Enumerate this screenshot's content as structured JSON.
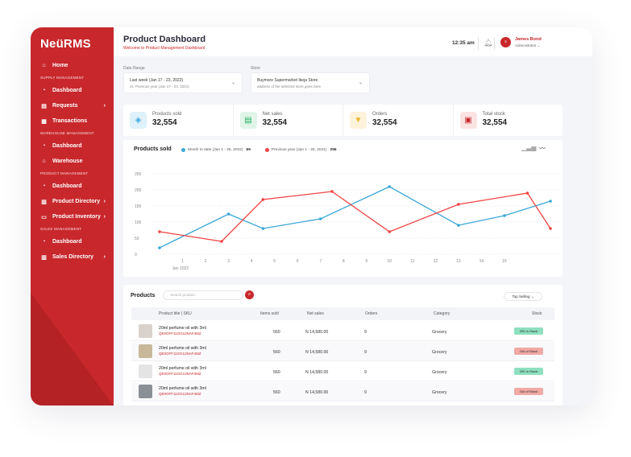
{
  "app": {
    "logo": "NeüRMS"
  },
  "sidebar": {
    "items": [
      {
        "type": "item",
        "label": "Home",
        "icon": "home-icon"
      },
      {
        "type": "section",
        "label": "SUPPLY MANAGEMENT"
      },
      {
        "type": "item",
        "label": "Dashboard",
        "icon": "dashboard-icon"
      },
      {
        "type": "item",
        "label": "Requests",
        "icon": "requests-icon",
        "chevron": true
      },
      {
        "type": "item",
        "label": "Transactions",
        "icon": "transactions-icon"
      },
      {
        "type": "section",
        "label": "WAREHOUSE MANAGEMENT"
      },
      {
        "type": "item",
        "label": "Dashboard",
        "icon": "dashboard-icon"
      },
      {
        "type": "item",
        "label": "Warehouse",
        "icon": "warehouse-icon"
      },
      {
        "type": "section",
        "label": "PRODUCT MANAGEMENT"
      },
      {
        "type": "item",
        "label": "Dashboard",
        "icon": "dashboard-icon",
        "active": true
      },
      {
        "type": "item",
        "label": "Product Directory",
        "icon": "directory-icon",
        "chevron": true
      },
      {
        "type": "item",
        "label": "Product Inventory",
        "icon": "inventory-icon",
        "chevron": true
      },
      {
        "type": "section",
        "label": "SALES MANAGEMENT"
      },
      {
        "type": "item",
        "label": "Dashboard",
        "icon": "dashboard-icon"
      },
      {
        "type": "item",
        "label": "Sales Directory",
        "icon": "directory-icon",
        "chevron": true
      }
    ]
  },
  "header": {
    "title": "Product Dashboard",
    "subtitle": "Welcome to Product Management Dashboard",
    "time": "12:35 am",
    "user_name": "James Bond",
    "user_role": "Administrator",
    "avatar_glyph": "♀"
  },
  "filters": {
    "date_label": "Date Range",
    "date_value": "Last week (Jan 17 - 23, 2022)",
    "date_compare": "vs. Previous year (Jan 17 - 23, 2021)",
    "store_label": "Store",
    "store_value": "Buymore Supermarket Ikeja Store",
    "store_address": "address of the selected store goes here"
  },
  "stats": [
    {
      "label": "Products sold",
      "value": "32,554",
      "color": "#3aa7d8",
      "bg": "#dff1fa",
      "icon": "cube-icon",
      "glyph": "◈"
    },
    {
      "label": "Net sales",
      "value": "32,554",
      "color": "#27ae60",
      "bg": "#e0f5e8",
      "icon": "sales-chart-icon",
      "glyph": "▤"
    },
    {
      "label": "Orders",
      "value": "32,554",
      "color": "#f0b429",
      "bg": "#fdf3dc",
      "icon": "basket-icon",
      "glyph": "▼"
    },
    {
      "label": "Total stock",
      "value": "32,554",
      "color": "#c8282c",
      "bg": "#fbe3e3",
      "icon": "stock-box-icon",
      "glyph": "▣"
    }
  ],
  "chart_data": {
    "type": "line",
    "title": "Products sold",
    "x": [
      0,
      1,
      2,
      3,
      4,
      5,
      6,
      7,
      8,
      9,
      10,
      11,
      12,
      13,
      14,
      15
    ],
    "xticks": [
      "1",
      "2",
      "3",
      "4",
      "5",
      "6",
      "7",
      "8",
      "9",
      "10",
      "11",
      "12",
      "13",
      "14",
      "15"
    ],
    "x_sublabel": "Jan 2022",
    "yticks": [
      0,
      50,
      100,
      150,
      200,
      250
    ],
    "ylim": [
      0,
      250
    ],
    "series": [
      {
        "name": "Month to date (Jan 1 - 25, 2022)",
        "total": "65",
        "color": "#3aa7d8",
        "points": [
          [
            0,
            20
          ],
          [
            3,
            125
          ],
          [
            4.5,
            80
          ],
          [
            7,
            110
          ],
          [
            10,
            210
          ],
          [
            13,
            90
          ],
          [
            15,
            120
          ],
          [
            17,
            165
          ]
        ]
      },
      {
        "name": "Previous year (Jan 1 - 25, 2021)",
        "total": "256",
        "color": "#ef4444",
        "points": [
          [
            0,
            70
          ],
          [
            2.7,
            40
          ],
          [
            4.5,
            170
          ],
          [
            7.5,
            195
          ],
          [
            10,
            70
          ],
          [
            13,
            155
          ],
          [
            16,
            190
          ],
          [
            17,
            80
          ]
        ]
      }
    ],
    "grid": true
  },
  "products": {
    "title": "Products",
    "search_placeholder": "Search product...",
    "sort_label": "Top Selling  ⌄",
    "columns": [
      "Product title | SKU",
      "Items sold",
      "Net sales",
      "Orders",
      "Category",
      "Stock"
    ],
    "rows": [
      {
        "name": "20ml perfume oil with 3ml",
        "sku": "QE0OFF11GG13NAF4MZ",
        "sold": "560",
        "sales": "N 14,580.00",
        "orders": "9",
        "category": "Grocery",
        "stock": "250 In Stock",
        "stock_color": "#8fe0c0",
        "thumb": "#d9d2cc"
      },
      {
        "name": "20ml perfume oil with 3ml",
        "sku": "QE0OFF11GG13NAF4MZ",
        "sold": "560",
        "sales": "N 14,580.00",
        "orders": "9",
        "category": "Grocery",
        "stock": "Out of Stock",
        "stock_color": "#f0a9a3",
        "thumb": "#c9b79a"
      },
      {
        "name": "20ml perfume oil with 3ml",
        "sku": "QE0OFF11GG13NAF4MZ",
        "sold": "560",
        "sales": "N 14,580.00",
        "orders": "9",
        "category": "Grocery",
        "stock": "250 In Stock",
        "stock_color": "#8fe0c0",
        "thumb": "#e4e4e4"
      },
      {
        "name": "20ml perfume oil with 3ml",
        "sku": "QE0OFF11GG13NAF4MZ",
        "sold": "560",
        "sales": "N 14,580.00",
        "orders": "9",
        "category": "Grocery",
        "stock": "Out of Stock",
        "stock_color": "#f0a9a3",
        "thumb": "#8b8f96"
      }
    ]
  }
}
